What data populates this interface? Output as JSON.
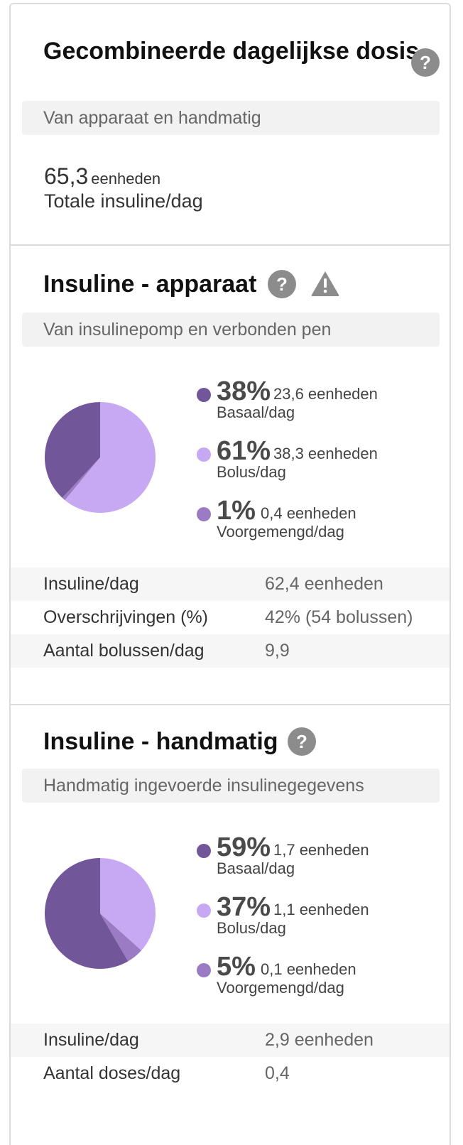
{
  "colors": {
    "basal": "#72569a",
    "bolus": "#c6a9f2",
    "premixed": "#9b7cc4",
    "help_icon": "#8c8c8c",
    "subbar": "#f2f2f2"
  },
  "combined": {
    "title": "Gecombineerde dagelijkse dosis",
    "subtitle": "Van apparaat en handmatig",
    "total_value": "65,3",
    "total_unit": "eenheden",
    "total_label": "Totale insuline/dag",
    "help_icon": "question-circle-icon"
  },
  "device": {
    "title": "Insuline - apparaat",
    "subtitle": "Van insulinepomp en verbonden pen",
    "help_icon": "question-circle-icon",
    "warning_icon": "warning-triangle-icon",
    "breakdown": [
      {
        "pct": "38%",
        "units": "23,6 eenheden",
        "label": "Basaal/dag",
        "value": 38,
        "color": "#72569a"
      },
      {
        "pct": "61%",
        "units": "38,3 eenheden",
        "label": "Bolus/dag",
        "value": 61,
        "color": "#c6a9f2"
      },
      {
        "pct": "1%",
        "units": "0,4 eenheden",
        "label": "Voorgemengd/dag",
        "value": 1,
        "color": "#9b7cc4"
      }
    ],
    "stats": [
      {
        "label": "Insuline/dag",
        "value": "62,4 eenheden"
      },
      {
        "label": "Overschrijvingen (%)",
        "value": "42% (54 bolussen)"
      },
      {
        "label": "Aantal bolussen/dag",
        "value": "9,9"
      }
    ]
  },
  "manual": {
    "title": "Insuline - handmatig",
    "subtitle": "Handmatig ingevoerde insulinegegevens",
    "help_icon": "question-circle-icon",
    "breakdown": [
      {
        "pct": "59%",
        "units": "1,7 eenheden",
        "label": "Basaal/dag",
        "value": 59,
        "color": "#72569a"
      },
      {
        "pct": "37%",
        "units": "1,1 eenheden",
        "label": "Bolus/dag",
        "value": 37,
        "color": "#c6a9f2"
      },
      {
        "pct": "5%",
        "units": "0,1 eenheden",
        "label": "Voorgemengd/dag",
        "value": 5,
        "color": "#9b7cc4"
      }
    ],
    "stats": [
      {
        "label": "Insuline/dag",
        "value": "2,9 eenheden"
      },
      {
        "label": "Aantal doses/dag",
        "value": "0,4"
      }
    ]
  }
}
